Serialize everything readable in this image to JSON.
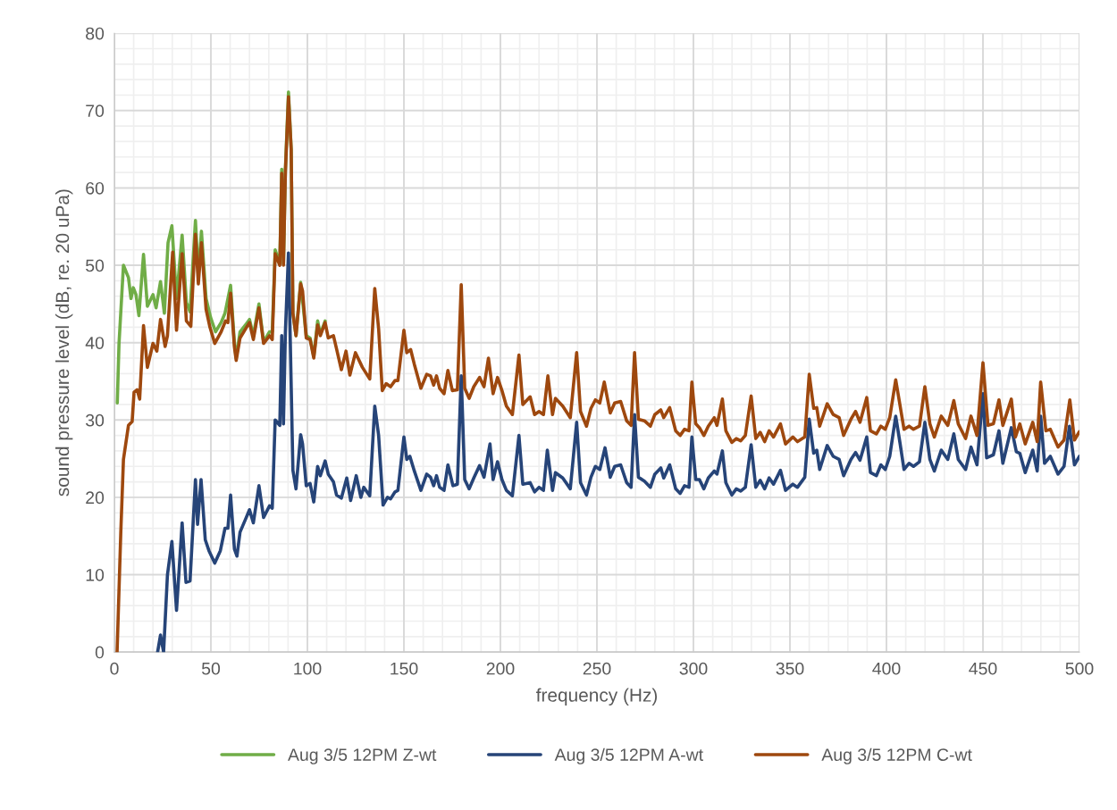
{
  "chart_data": {
    "type": "line",
    "xlabel": "frequency (Hz)",
    "ylabel": "sound pressure level (dB, re. 20 uPa)",
    "xlim": [
      0,
      500
    ],
    "xticks": [
      0,
      50,
      100,
      150,
      200,
      250,
      300,
      350,
      400,
      450,
      500
    ],
    "ylim": [
      0,
      80
    ],
    "yticks": [
      0,
      10,
      20,
      30,
      40,
      50,
      60,
      70,
      80
    ],
    "grid": true,
    "legend": "bottom",
    "marker": "none",
    "line_style": "solid",
    "series": [
      {
        "name": "Aug 3/5 12PM Z-wt",
        "color": "#70ad47",
        "x": [
          1.5,
          2.4,
          4.7,
          7.3,
          8.6,
          9.8,
          11.2,
          12.7,
          15.1,
          17.1,
          20,
          21.6,
          23.9,
          25.9,
          27.8,
          29.8,
          32.2,
          35.1,
          37.3,
          39.2,
          42,
          43.5,
          45.1,
          47.5,
          49.8,
          52.4,
          55.3,
          57.3,
          60.2,
          62.2,
          63.1,
          65.1,
          68,
          70,
          72,
          74.9,
          77.3,
          80.4,
          81.8,
          83.3,
          85.7,
          86.7,
          87.6,
          88.6,
          90.2,
          91.6,
          92.5,
          94.1,
          96.5,
          99.4,
          101.4,
          103.3,
          105.3,
          106.7,
          109.2
        ],
        "values": [
          32.2,
          39.9,
          50,
          48.4,
          45.7,
          47.1,
          46.2,
          43.5,
          51.4,
          44.7,
          46.2,
          44.5,
          47.9,
          43.8,
          52.9,
          55.1,
          45.7,
          53.9,
          45.2,
          44,
          55.8,
          48.6,
          54.4,
          45.7,
          43.3,
          41.4,
          42.6,
          43.8,
          47.4,
          39.9,
          38,
          41.4,
          42.3,
          43,
          40.9,
          45,
          40.1,
          41.4,
          41.4,
          52,
          50.2,
          62.4,
          50.2,
          62.4,
          72.4,
          65,
          43.8,
          40.9,
          47.8,
          40.9,
          40.6,
          38.2,
          42.8,
          41.1,
          42.8
        ]
      },
      {
        "name": "Aug 3/5 12PM A-wt",
        "color": "#264478",
        "x": [
          22.4,
          23.9,
          25.5,
          27.5,
          29.8,
          32.2,
          35.1,
          37.1,
          39.2,
          42,
          43.1,
          44.9,
          47.1,
          49,
          52,
          54.9,
          57.3,
          58.8,
          60.2,
          62.2,
          63.5,
          65.1,
          68,
          70,
          72,
          74.9,
          77.3,
          80.4,
          81.8,
          83.3,
          85.7,
          86.7,
          87.6,
          88.6,
          90.2,
          92.5,
          94.1,
          96.5,
          97.5,
          99.4,
          101.4,
          103.3,
          105.3,
          106.7,
          109.2,
          110.8,
          113.5,
          115.1,
          117.6,
          120.4,
          122.4,
          125.3,
          127.7,
          129.2,
          132.3,
          134.9,
          136.9,
          139.2,
          141.5,
          143.1,
          145.4,
          146.9,
          150,
          151.5,
          153.1,
          155.4,
          158.8,
          161.8,
          163.8,
          165.4,
          166.9,
          168.5,
          170.8,
          172.8,
          175.4,
          177.7,
          179.7,
          181.5,
          183.8,
          186.2,
          189.2,
          191.5,
          194.6,
          196.2,
          198.5,
          200.8,
          203.1,
          206.2,
          209.6,
          211.6,
          215.4,
          217.7,
          220,
          222.3,
          224.3,
          227,
          228.5,
          232.3,
          236.2,
          239.5,
          241.5,
          244.6,
          246.9,
          249.2,
          251.5,
          254.2,
          256.9,
          259.2,
          262.3,
          265.4,
          267.7,
          269.5,
          271.5,
          274.6,
          277.7,
          280,
          283.1,
          284.6,
          287.7,
          290.8,
          293.1,
          295.4,
          297.7,
          299.2,
          301.2,
          303.1,
          305.4,
          307.7,
          310.8,
          312.2,
          315,
          316.8,
          319.9,
          322.2,
          324.5,
          326.9,
          329.9,
          332.3,
          334.6,
          336.9,
          339.2,
          341.5,
          345.1,
          347.7,
          351.5,
          353.9,
          357.7,
          360,
          362.3,
          363.9,
          365.4,
          369.3,
          372.4,
          375.5,
          377.8,
          381.6,
          384,
          386.3,
          389.8,
          391.7,
          394.8,
          397.1,
          399.4,
          401.7,
          404.8,
          407.1,
          409.1,
          411.7,
          414,
          417.1,
          419.9,
          422.5,
          424.8,
          428.4,
          431.8,
          434.9,
          437.2,
          441,
          443.8,
          446.9,
          450,
          451.9,
          455.4,
          458.3,
          460.3,
          464.7,
          467.3,
          469.1,
          471.9,
          475.8,
          478.1,
          479.9,
          481.9,
          484.9,
          488.9,
          492,
          494.8,
          497.4,
          500
        ],
        "values": [
          0,
          2.2,
          0,
          10,
          14.3,
          5.4,
          16.7,
          9,
          9.2,
          22.3,
          16.5,
          22.3,
          14.5,
          13.1,
          11.5,
          13.1,
          16,
          16,
          20.3,
          13.3,
          12.4,
          15.5,
          17.2,
          18.4,
          16.7,
          21.5,
          17.4,
          18.9,
          18.6,
          30,
          29.3,
          40.9,
          29.5,
          41.4,
          51.6,
          23.5,
          21.1,
          28.1,
          26.9,
          21.5,
          21.8,
          19.4,
          24,
          22.8,
          24.7,
          23,
          22,
          20.3,
          19.9,
          22.5,
          19.6,
          22.8,
          20,
          21.3,
          20.2,
          31.8,
          28,
          19,
          20,
          19.8,
          20.7,
          20.9,
          27.8,
          24.9,
          25.3,
          23.4,
          20.9,
          23,
          22.6,
          21.5,
          22.8,
          21.3,
          20.9,
          24.2,
          21.5,
          21.7,
          35.7,
          22.3,
          21.1,
          22.5,
          24.1,
          22.6,
          26.9,
          22.3,
          24.6,
          22.3,
          20.9,
          20.2,
          28,
          21.7,
          21.9,
          20.7,
          21.3,
          20.9,
          26.1,
          20.9,
          23.2,
          22.5,
          21.1,
          29.7,
          21.9,
          20.3,
          22.6,
          24,
          23.6,
          26.4,
          22.6,
          24,
          24.2,
          21.9,
          21.3,
          30.7,
          22.6,
          22.1,
          21.3,
          23,
          23.8,
          22.5,
          24.2,
          21.1,
          20.5,
          21.5,
          21.3,
          27.8,
          22.3,
          22.3,
          21.1,
          22.5,
          23.4,
          23,
          26,
          21.9,
          20.3,
          21.1,
          20.8,
          21.3,
          26.8,
          21.3,
          22.2,
          21.1,
          22.5,
          21.7,
          23.5,
          20.9,
          21.7,
          21.3,
          22.6,
          30.1,
          25.7,
          26.1,
          23.6,
          26.7,
          25.3,
          24.9,
          22.8,
          24.9,
          25.8,
          24.8,
          27.8,
          23.2,
          22.8,
          24.2,
          23.6,
          25.3,
          30.5,
          26.9,
          23.6,
          24.4,
          24,
          24.6,
          29.7,
          24.9,
          23.4,
          26.1,
          24.9,
          28.2,
          24.9,
          23.6,
          26.5,
          24.2,
          33.4,
          25.1,
          25.5,
          28.6,
          24.4,
          29,
          25.9,
          25.7,
          23.2,
          26.1,
          23.4,
          30.5,
          24.4,
          25.3,
          23,
          24,
          29.2,
          24.2,
          25.3
        ]
      },
      {
        "name": "Aug 3/5 12PM C-wt",
        "color": "#9e480e",
        "x": [
          1.4,
          3.3,
          4.7,
          7.3,
          9.2,
          10.2,
          11.8,
          13.1,
          15.1,
          17.1,
          20,
          22,
          23.9,
          26.3,
          27.5,
          30.2,
          32.2,
          35.1,
          37.3,
          39.6,
          42,
          43.5,
          45.1,
          47.5,
          49.4,
          52,
          55.3,
          57.6,
          58.8,
          60.2,
          62.2,
          63.1,
          65.1,
          68,
          70,
          72,
          74.9,
          77.3,
          80.4,
          81.8,
          83.3,
          85.7,
          86.7,
          87.6,
          88.6,
          90.2,
          91.6,
          92.5,
          94.1,
          96.5,
          97.5,
          99.4,
          101.4,
          103.3,
          105.3,
          106.7,
          109.2,
          110.8,
          113.5,
          115.1,
          117.6,
          120,
          122,
          124.9,
          128.5,
          132.3,
          134.9,
          136.9,
          138.8,
          140.8,
          143.1,
          145.4,
          146.9,
          150,
          151.5,
          153.5,
          155.4,
          158.8,
          161.8,
          163.8,
          165.4,
          166.9,
          168.5,
          170.8,
          172.8,
          175.1,
          177.7,
          179.7,
          181.5,
          183.8,
          186.2,
          189.2,
          191.5,
          193.8,
          196.2,
          198.5,
          200.8,
          203.1,
          206.2,
          209.6,
          211.6,
          215.4,
          217.7,
          220,
          222.3,
          224.6,
          227,
          228.5,
          232.3,
          236.2,
          239.5,
          241.5,
          244.6,
          246.9,
          249.2,
          251.5,
          253.8,
          256.9,
          259.2,
          262.3,
          265.4,
          267.7,
          269.5,
          271.5,
          274.6,
          277.7,
          280,
          283.1,
          284.6,
          287.7,
          290.8,
          293.1,
          295.4,
          297.7,
          299.2,
          301.2,
          303.1,
          305.4,
          307.7,
          310.8,
          312.2,
          315,
          316.8,
          319.9,
          322.2,
          324.5,
          326.9,
          329.9,
          332.3,
          334.6,
          336.9,
          339.2,
          341.5,
          345.1,
          347.7,
          351.5,
          353.9,
          357.7,
          360,
          362.3,
          363.9,
          365.4,
          369.3,
          372.4,
          375.5,
          377.8,
          381.6,
          384,
          386.3,
          389.8,
          391.7,
          394.8,
          397.1,
          399.4,
          401.7,
          404.8,
          407.1,
          409.1,
          411.7,
          414,
          417.1,
          419.9,
          422.5,
          424.8,
          428.4,
          431.8,
          434.9,
          437.2,
          441,
          443.8,
          446.9,
          450,
          452.6,
          455.4,
          458.3,
          460.3,
          464.7,
          466.8,
          469.1,
          471.9,
          475.8,
          478.1,
          479.9,
          482.6,
          484.9,
          488.9,
          492,
          495,
          497.4,
          500
        ],
        "values": [
          0,
          15.3,
          24.9,
          29.3,
          29.8,
          33.6,
          33.9,
          32.7,
          42.2,
          36.8,
          39.9,
          38.9,
          43,
          39.5,
          40.9,
          51.7,
          41.6,
          51.5,
          42.8,
          42.1,
          54,
          47.6,
          52.9,
          44.3,
          42.1,
          39.9,
          41.4,
          42.8,
          42.6,
          46.4,
          39.4,
          37.7,
          40.6,
          41.8,
          42.6,
          40.4,
          44.5,
          39.9,
          40.9,
          40.4,
          51.5,
          50,
          61.9,
          50,
          62.1,
          71.8,
          65,
          43.8,
          40.9,
          47.6,
          46.7,
          40.6,
          40.4,
          38,
          42.3,
          40.9,
          42.6,
          40.6,
          40.9,
          39.2,
          36.5,
          38.9,
          35.8,
          38.7,
          36.8,
          35.3,
          47,
          41.8,
          33.8,
          34.7,
          34.3,
          35.1,
          35.1,
          41.6,
          38.7,
          39.1,
          37.2,
          34.1,
          35.9,
          35.7,
          34.5,
          35.7,
          34.1,
          33.4,
          36.4,
          33.8,
          33.9,
          47.5,
          34.1,
          32.8,
          34.3,
          35.5,
          34.3,
          38,
          33.4,
          35.5,
          33.8,
          31.8,
          30.7,
          38.4,
          32,
          33,
          30.7,
          31.1,
          30.7,
          35.7,
          30.7,
          32.8,
          31.8,
          30.3,
          38.7,
          31.1,
          29.2,
          31.5,
          32.6,
          32.2,
          34.9,
          30.9,
          32.2,
          32.4,
          29.9,
          29.3,
          38.7,
          30.1,
          29.9,
          29.2,
          30.7,
          31.3,
          30.3,
          31.6,
          28.6,
          28,
          28.8,
          28.6,
          34.9,
          29.5,
          29,
          28,
          29.2,
          30.3,
          29.3,
          32.7,
          28.6,
          27.1,
          27.6,
          27.3,
          28,
          33.1,
          27.6,
          28.4,
          27.2,
          28.6,
          27.8,
          29.5,
          26.9,
          27.8,
          27.2,
          27.8,
          35.9,
          31.5,
          31.6,
          29.2,
          32.1,
          30.7,
          30.3,
          28,
          30.1,
          31.1,
          29.7,
          32.9,
          28.6,
          28.2,
          29.2,
          28.8,
          30.3,
          35.2,
          31.8,
          28.8,
          29.2,
          28.8,
          29.2,
          34.3,
          29.5,
          27.8,
          30.5,
          29.3,
          32.5,
          29.5,
          27.6,
          30.5,
          28,
          37.4,
          29.3,
          29.5,
          32.6,
          29.3,
          32.7,
          27.8,
          29.5,
          26.9,
          29.7,
          27.2,
          34.9,
          28.6,
          28.8,
          26.5,
          27.4,
          32.6,
          27.4,
          28.5
        ]
      }
    ]
  }
}
